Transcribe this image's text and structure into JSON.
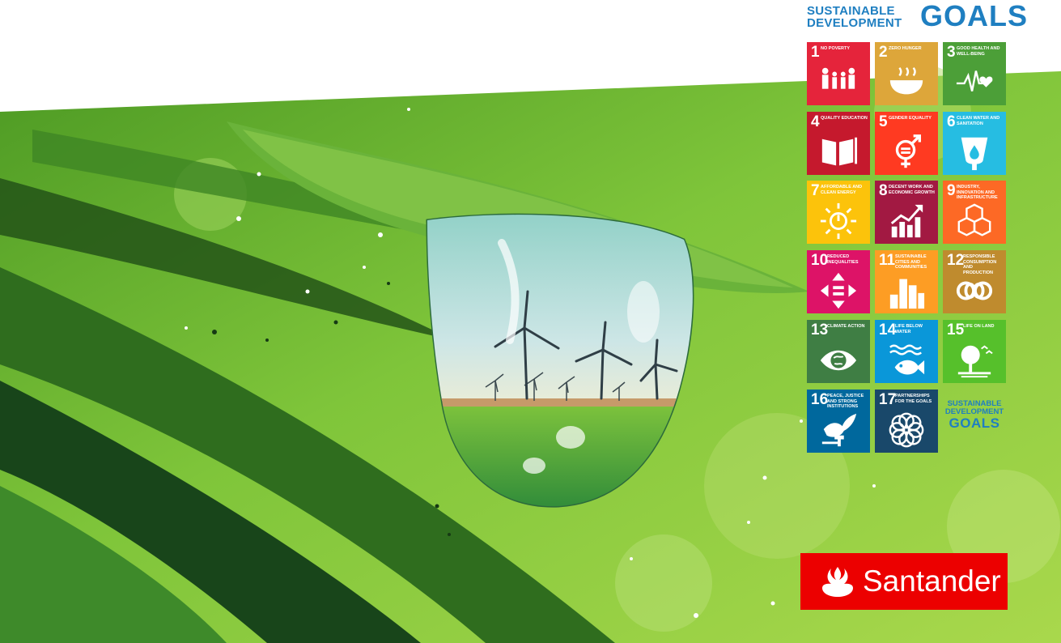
{
  "header": {
    "line1": "SUSTAINABLE",
    "line2": "DEVELOPMENT",
    "goals": "GOALS",
    "color": "#1f7fc1"
  },
  "goals": [
    {
      "n": "1",
      "title": "NO POVERTY",
      "color": "#e5243b",
      "icon": "family-icon"
    },
    {
      "n": "2",
      "title": "ZERO HUNGER",
      "color": "#dda63a",
      "icon": "bowl-icon"
    },
    {
      "n": "3",
      "title": "GOOD HEALTH AND WELL-BEING",
      "color": "#4c9f38",
      "icon": "heartbeat-icon"
    },
    {
      "n": "4",
      "title": "QUALITY EDUCATION",
      "color": "#c5192d",
      "icon": "book-icon"
    },
    {
      "n": "5",
      "title": "GENDER EQUALITY",
      "color": "#ff3a21",
      "icon": "gender-icon"
    },
    {
      "n": "6",
      "title": "CLEAN WATER AND SANITATION",
      "color": "#26bde2",
      "icon": "water-icon"
    },
    {
      "n": "7",
      "title": "AFFORDABLE AND CLEAN ENERGY",
      "color": "#fcc30b",
      "icon": "sun-power-icon"
    },
    {
      "n": "8",
      "title": "DECENT WORK AND ECONOMIC GROWTH",
      "color": "#a21942",
      "icon": "growth-chart-icon"
    },
    {
      "n": "9",
      "title": "INDUSTRY, INNOVATION AND INFRASTRUCTURE",
      "color": "#fd6925",
      "icon": "cubes-icon"
    },
    {
      "n": "10",
      "title": "REDUCED INEQUALITIES",
      "color": "#dd1367",
      "icon": "equal-arrows-icon"
    },
    {
      "n": "11",
      "title": "SUSTAINABLE CITIES AND COMMUNITIES",
      "color": "#fd9d24",
      "icon": "city-icon"
    },
    {
      "n": "12",
      "title": "RESPONSIBLE CONSUMPTION AND PRODUCTION",
      "color": "#bf8b2e",
      "icon": "infinity-icon"
    },
    {
      "n": "13",
      "title": "CLIMATE ACTION",
      "color": "#3f7e44",
      "icon": "eye-globe-icon"
    },
    {
      "n": "14",
      "title": "LIFE BELOW WATER",
      "color": "#0a97d9",
      "icon": "fish-icon"
    },
    {
      "n": "15",
      "title": "LIFE ON LAND",
      "color": "#56c02b",
      "icon": "tree-icon"
    },
    {
      "n": "16",
      "title": "PEACE, JUSTICE AND STRONG INSTITUTIONS",
      "color": "#00689d",
      "icon": "dove-icon"
    },
    {
      "n": "17",
      "title": "PARTNERSHIPS FOR THE GOALS",
      "color": "#19486a",
      "icon": "flower-rings-icon"
    }
  ],
  "logo_tile": {
    "line1": "SUSTAINABLE",
    "line2": "DEVELOPMENT",
    "line3": "GOALS"
  },
  "brand": {
    "name": "Santander",
    "color": "#ec0000"
  },
  "illustration": {
    "subject": "water-drop-wind-turbines",
    "background": "#7cc63b"
  }
}
